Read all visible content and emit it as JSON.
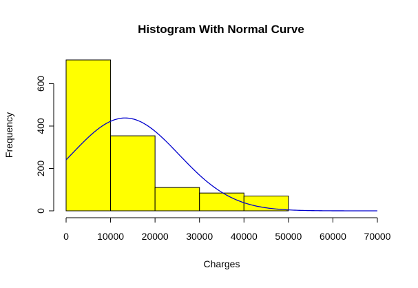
{
  "chart_data": {
    "type": "bar",
    "title": "Histogram With Normal Curve",
    "xlabel": "Charges",
    "ylabel": "Frequency",
    "bins": [
      {
        "start": 0,
        "end": 10000,
        "count": 712
      },
      {
        "start": 10000,
        "end": 20000,
        "count": 354
      },
      {
        "start": 20000,
        "end": 30000,
        "count": 110
      },
      {
        "start": 30000,
        "end": 40000,
        "count": 84
      },
      {
        "start": 40000,
        "end": 50000,
        "count": 70
      }
    ],
    "bar_color": "#ffff00",
    "bar_border_color": "#000000",
    "x_ticks": [
      0,
      10000,
      20000,
      30000,
      40000,
      50000,
      60000,
      70000
    ],
    "y_ticks": [
      0,
      200,
      400,
      600
    ],
    "xlim": [
      0,
      70000
    ],
    "ylim": [
      0,
      712
    ],
    "grid": false,
    "normal_curve": {
      "color": "#0000cd",
      "mean": 13270,
      "sd": 12110,
      "x_range": [
        0,
        70000
      ]
    }
  }
}
